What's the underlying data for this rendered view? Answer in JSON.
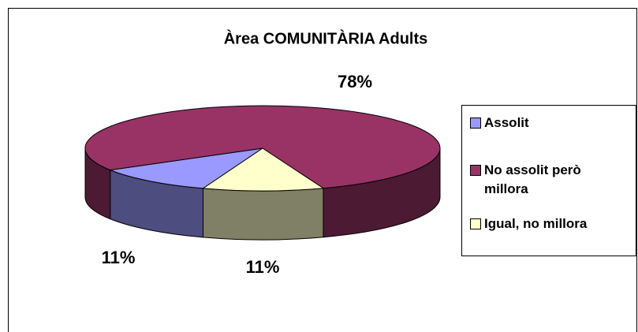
{
  "chart_data": {
    "type": "pie3d",
    "title": "Àrea COMUNITÀRIA Adults",
    "categories": [
      "Assolit",
      "No assolit però millora",
      "Igual, no millora"
    ],
    "values": [
      11,
      78,
      11
    ],
    "value_labels": [
      "11%",
      "78%",
      "11%"
    ],
    "colors": [
      "#9999ff",
      "#993366",
      "#ffffcc"
    ],
    "legend": "right"
  }
}
